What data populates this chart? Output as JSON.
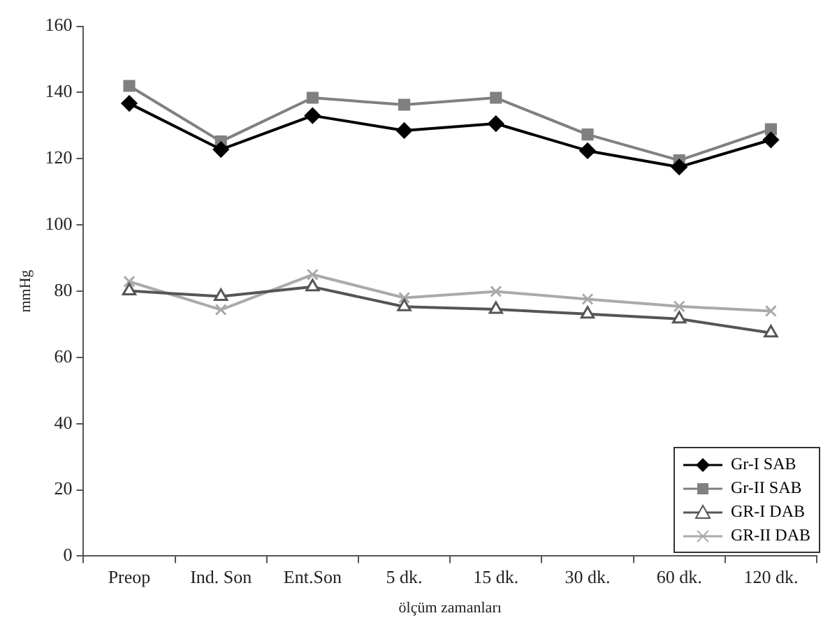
{
  "chart_data": {
    "type": "line",
    "xlabel": "ölçüm zamanları",
    "ylabel": "mmHg",
    "categories": [
      "Preop",
      "Ind. Son",
      "Ent.Son",
      "5 dk.",
      "15 dk.",
      "30 dk.",
      "60 dk.",
      "120 dk."
    ],
    "series": [
      {
        "name": "Gr-I SAB",
        "color": "#000000",
        "marker": "diamond",
        "values": [
          136.7,
          122.8,
          133,
          128.5,
          130.6,
          122.4,
          117.5,
          125.7
        ]
      },
      {
        "name": "Gr-II SAB",
        "color": "#808080",
        "marker": "square",
        "values": [
          142,
          125.2,
          138.4,
          136.3,
          138.4,
          127.3,
          119.5,
          128.9
        ]
      },
      {
        "name": "GR-I DAB",
        "color": "#555555",
        "marker": "triangle",
        "values": [
          80.1,
          78.4,
          81.3,
          75.3,
          74.5,
          73.1,
          71.6,
          67.4
        ]
      },
      {
        "name": "GR-II DAB",
        "color": "#aaaaaa",
        "marker": "cross",
        "values": [
          82.9,
          74.4,
          85,
          78,
          79.9,
          77.6,
          75.4,
          74
        ]
      }
    ],
    "ylim": [
      0,
      160
    ],
    "yticks": [
      0,
      20,
      40,
      60,
      80,
      100,
      120,
      140,
      160
    ],
    "grid": false,
    "legend": "bottom right",
    "line_style": "solid"
  }
}
